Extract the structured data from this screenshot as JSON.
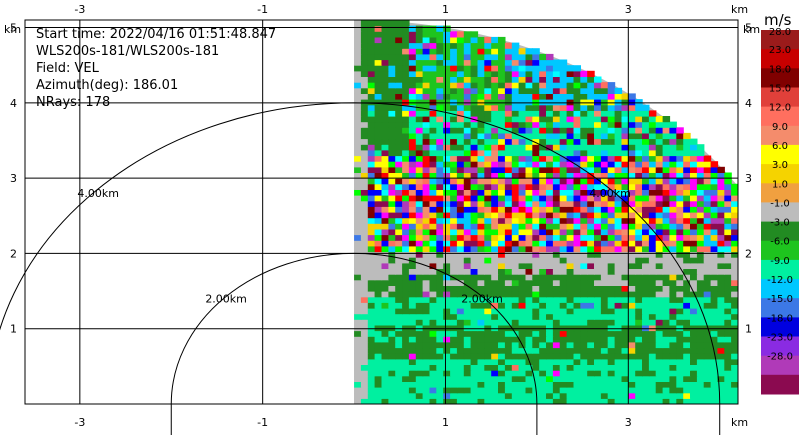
{
  "chart_data": {
    "type": "heatmap",
    "info": {
      "start_time": "Start time: 2022/04/16 01:51:48.847",
      "instrument": "WLS200s-181/WLS200s-181",
      "field": "Field: VEL",
      "azimuth": "Azimuth(deg): 186.01",
      "nrays": "NRays: 178"
    },
    "x_unit": "km",
    "y_unit": "km",
    "xlim": [
      -3.6,
      4.2
    ],
    "ylim": [
      0,
      5.1
    ],
    "x_ticks": [
      -3,
      -1,
      1,
      3
    ],
    "y_ticks": [
      1,
      2,
      3,
      4,
      5
    ],
    "grid": true,
    "sector": {
      "azimuth_start_deg": 0,
      "azimuth_end_deg": 90,
      "max_range_km": 5.1
    },
    "range_rings": [
      {
        "radius_km": 2,
        "label": "2.00km"
      },
      {
        "radius_km": 4,
        "label": "4.00km"
      }
    ],
    "colorbar": {
      "unit": "m/s",
      "boundaries": [
        28.0,
        23.0,
        18.0,
        15.0,
        12.0,
        9.0,
        6.0,
        3.0,
        1.0,
        -1.0,
        -3.0,
        -6.0,
        -9.0,
        -12.0,
        -15.0,
        -18.0,
        -23.0,
        -28.0
      ],
      "labels": [
        "28.0",
        "23.0",
        "18.0",
        "15.0",
        "12.0",
        "9.0",
        "6.0",
        "3.0",
        "1.0",
        "-1.0",
        "-3.0",
        "-6.0",
        "-9.0",
        "-12.0",
        "-15.0",
        "-18.0",
        "-23.0",
        "-28.0"
      ],
      "colors": [
        "#9b1b1b",
        "#c80000",
        "#800000",
        "#e0403a",
        "#ff6f5f",
        "#f48c6c",
        "#ffff00",
        "#f5d300",
        "#f0a040",
        "#bcbcbc",
        "#228b22",
        "#1ec41e",
        "#00f0a0",
        "#00c8ff",
        "#3c78e6",
        "#0000e0",
        "#8a2be2",
        "#b03ab8",
        "#8b0a50"
      ]
    },
    "bands": [
      {
        "y_from": 0.0,
        "y_to": 0.6,
        "dominant": "#00f0a0",
        "secondary": "#228b22",
        "noise": 0.02
      },
      {
        "y_from": 0.6,
        "y_to": 1.05,
        "dominant": "#228b22",
        "secondary": "#00f0a0",
        "noise": 0.03
      },
      {
        "y_from": 1.05,
        "y_to": 1.45,
        "dominant": "#00f0a0",
        "secondary": "#228b22",
        "noise": 0.04
      },
      {
        "y_from": 1.45,
        "y_to": 1.75,
        "dominant": "#228b22",
        "secondary": "#bcbcbc",
        "noise": 0.05
      },
      {
        "y_from": 1.75,
        "y_to": 2.0,
        "dominant": "#bcbcbc",
        "secondary": "#228b22",
        "noise": 0.05
      },
      {
        "y_from": 2.0,
        "y_to": 3.3,
        "dominant": "noise",
        "secondary": "#228b22",
        "noise": 0.85
      },
      {
        "y_from": 3.3,
        "y_to": 3.9,
        "dominant": "#00f0a0",
        "secondary": "#228b22",
        "noise": 0.35
      },
      {
        "y_from": 3.9,
        "y_to": 5.1,
        "dominant": "#00c8ff",
        "secondary": "#228b22",
        "noise": 0.4
      }
    ],
    "near_column": {
      "x_to": 0.1,
      "dominant": "#bcbcbc",
      "secondary": "#228b22"
    },
    "left_green_strip": {
      "x_from": 0.05,
      "x_to": 0.6,
      "y_from": 3.3,
      "y_to": 5.1,
      "color": "#228b22"
    }
  }
}
